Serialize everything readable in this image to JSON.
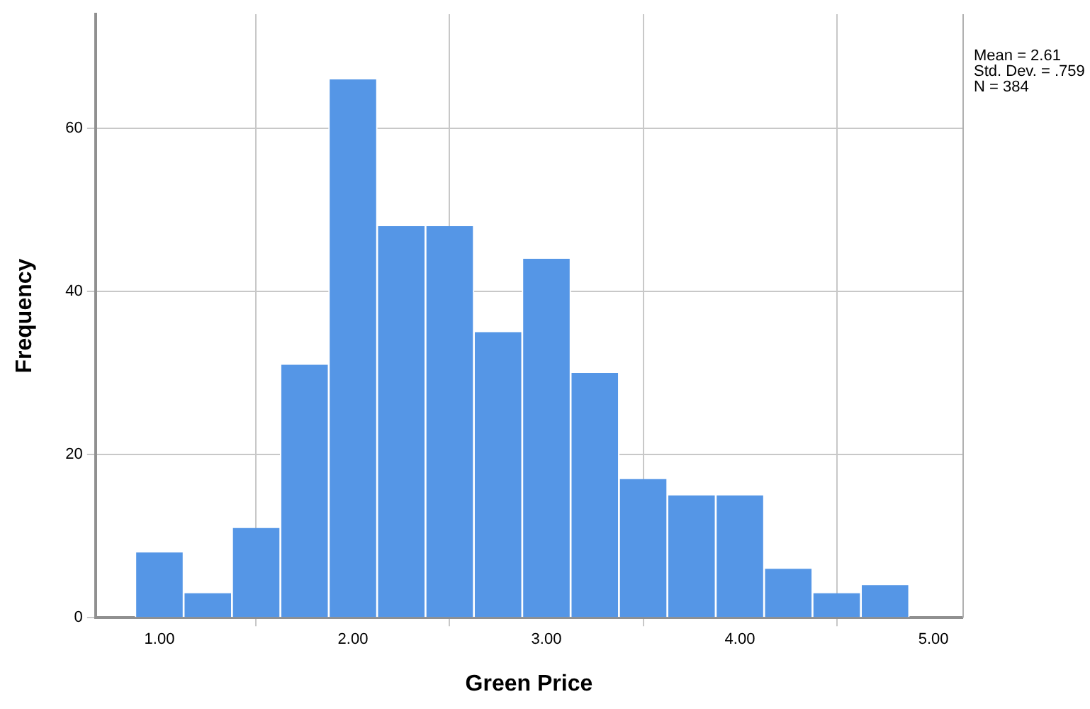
{
  "chart_data": {
    "type": "histogram",
    "xlabel": "Green Price",
    "ylabel": "Frequency",
    "bins": [
      0.875,
      1.125,
      1.375,
      1.625,
      1.875,
      2.125,
      2.375,
      2.625,
      2.875,
      3.125,
      3.375,
      3.625,
      3.875,
      4.125,
      4.375,
      4.625,
      4.875
    ],
    "values": [
      8,
      3,
      11,
      31,
      66,
      48,
      48,
      35,
      44,
      30,
      17,
      15,
      15,
      6,
      3,
      4
    ],
    "color": "#5596e6",
    "xlim": [
      0.67,
      5.15
    ],
    "xticks": [
      {
        "value": 1,
        "label": "1.00"
      },
      {
        "value": 2,
        "label": "2.00"
      },
      {
        "value": 3,
        "label": "3.00"
      },
      {
        "value": 4,
        "label": "4.00"
      },
      {
        "value": 5,
        "label": "5.00"
      }
    ],
    "ylim": [
      0,
      74
    ],
    "yticks": [
      0,
      20,
      40,
      60
    ],
    "grid": true,
    "annotations": [
      "Mean = 2.61",
      "Std. Dev. = .759",
      "N = 384"
    ]
  }
}
